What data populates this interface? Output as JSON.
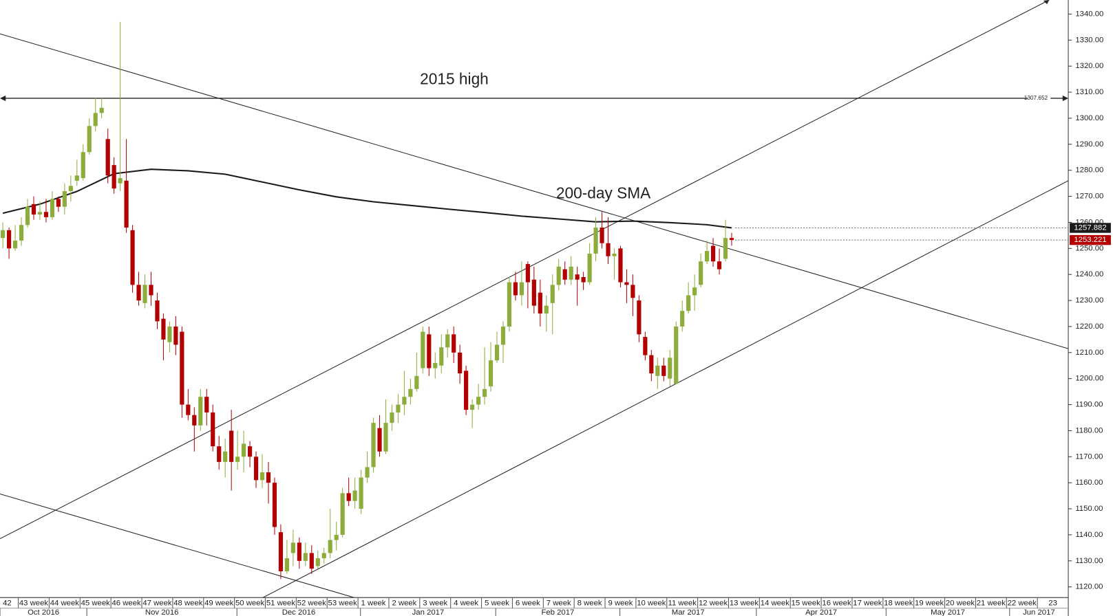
{
  "chart_data": {
    "type": "candlestick",
    "annotations": [
      {
        "text": "2015 high"
      },
      {
        "text": "200-day SMA"
      }
    ],
    "up_color": "#8cad3c",
    "down_color": "#b20000",
    "open": [
      1254,
      1257,
      1250,
      1253,
      1259,
      1267,
      1263,
      1264,
      1262,
      1269,
      1266,
      1272,
      1276,
      1277,
      1287,
      1297,
      1302,
      1292,
      1282,
      1275,
      1276,
      1257,
      1236,
      1229,
      1236,
      1230,
      1223,
      1214,
      1220,
      1218,
      1190,
      1186,
      1182,
      1193,
      1187,
      1174,
      1168,
      1180,
      1168,
      1170,
      1174,
      1170,
      1161,
      1164,
      1160,
      1141,
      1126,
      1133,
      1137,
      1130,
      1133,
      1128,
      1131,
      1133,
      1138,
      1140,
      1156,
      1153,
      1150,
      1162,
      1166,
      1181,
      1172,
      1183,
      1187,
      1190,
      1193,
      1196,
      1204,
      1217,
      1204,
      1205,
      1212,
      1217,
      1210,
      1203,
      1188,
      1190,
      1193,
      1197,
      1207,
      1213,
      1220,
      1237,
      1232,
      1244,
      1238,
      1233,
      1225,
      1229,
      1236,
      1242,
      1238,
      1240,
      1239,
      1237,
      1248,
      1258,
      1252,
      1247,
      1250,
      1237,
      1236,
      1230,
      1216,
      1209,
      1201,
      1205,
      1200,
      1198,
      1220,
      1226,
      1232,
      1236,
      1245,
      1251,
      1245,
      1246,
      1254
    ],
    "high": [
      1260,
      1258,
      1259,
      1262,
      1269,
      1270,
      1268,
      1269,
      1272,
      1270,
      1275,
      1278,
      1284,
      1290,
      1300,
      1308,
      1308,
      1296,
      1285,
      1337,
      1292,
      1259,
      1241,
      1240,
      1241,
      1233,
      1225,
      1222,
      1224,
      1220,
      1196,
      1189,
      1196,
      1196,
      1190,
      1178,
      1177,
      1188,
      1180,
      1180,
      1176,
      1172,
      1171,
      1168,
      1162,
      1144,
      1138,
      1142,
      1139,
      1137,
      1136,
      1134,
      1135,
      1150,
      1145,
      1158,
      1162,
      1162,
      1165,
      1172,
      1185,
      1186,
      1192,
      1190,
      1194,
      1203,
      1200,
      1210,
      1220,
      1220,
      1210,
      1217,
      1219,
      1220,
      1213,
      1205,
      1192,
      1198,
      1212,
      1214,
      1218,
      1222,
      1239,
      1241,
      1245,
      1245,
      1243,
      1238,
      1232,
      1240,
      1246,
      1245,
      1247,
      1243,
      1241,
      1252,
      1262,
      1264,
      1262,
      1250,
      1251,
      1242,
      1240,
      1232,
      1218,
      1211,
      1208,
      1208,
      1211,
      1222,
      1230,
      1237,
      1240,
      1248,
      1253,
      1254,
      1250,
      1261,
      1256
    ],
    "low": [
      1250,
      1246,
      1249,
      1251,
      1258,
      1261,
      1261,
      1260,
      1261,
      1264,
      1263,
      1268,
      1274,
      1276,
      1286,
      1295,
      1300,
      1275,
      1271,
      1272,
      1256,
      1233,
      1228,
      1227,
      1228,
      1219,
      1207,
      1210,
      1209,
      1185,
      1184,
      1172,
      1180,
      1182,
      1172,
      1165,
      1162,
      1157,
      1165,
      1164,
      1166,
      1158,
      1158,
      1152,
      1140,
      1123,
      1125,
      1128,
      1127,
      1128,
      1125,
      1127,
      1129,
      1131,
      1134,
      1139,
      1151,
      1150,
      1148,
      1160,
      1164,
      1170,
      1171,
      1180,
      1183,
      1186,
      1190,
      1195,
      1202,
      1201,
      1200,
      1202,
      1208,
      1206,
      1198,
      1186,
      1181,
      1188,
      1190,
      1195,
      1206,
      1206,
      1218,
      1230,
      1228,
      1227,
      1225,
      1220,
      1218,
      1217,
      1234,
      1236,
      1236,
      1228,
      1234,
      1236,
      1245,
      1250,
      1244,
      1238,
      1235,
      1229,
      1224,
      1214,
      1207,
      1199,
      1196,
      1199,
      1197,
      1198,
      1218,
      1225,
      1226,
      1235,
      1244,
      1243,
      1240,
      1245,
      1251
    ],
    "close": [
      1257,
      1250,
      1253,
      1259,
      1266,
      1263,
      1264,
      1262,
      1269,
      1266,
      1272,
      1274,
      1278,
      1287,
      1297,
      1302,
      1304,
      1278,
      1273,
      1277,
      1258,
      1236,
      1230,
      1236,
      1232,
      1222,
      1215,
      1220,
      1213,
      1190,
      1186,
      1182,
      1193,
      1187,
      1174,
      1168,
      1172,
      1168,
      1170,
      1175,
      1170,
      1161,
      1164,
      1160,
      1143,
      1126,
      1131,
      1137,
      1130,
      1133,
      1127,
      1131,
      1133,
      1138,
      1140,
      1156,
      1153,
      1157,
      1162,
      1166,
      1183,
      1172,
      1183,
      1187,
      1190,
      1193,
      1196,
      1201,
      1218,
      1204,
      1206,
      1212,
      1217,
      1210,
      1202,
      1188,
      1190,
      1193,
      1196,
      1207,
      1213,
      1220,
      1237,
      1232,
      1237,
      1237,
      1228,
      1225,
      1228,
      1236,
      1243,
      1238,
      1243,
      1238,
      1237,
      1248,
      1258,
      1252,
      1247,
      1248,
      1237,
      1236,
      1231,
      1217,
      1209,
      1202,
      1205,
      1201,
      1208,
      1220,
      1226,
      1232,
      1235,
      1245,
      1249,
      1245,
      1242,
      1254,
      1253.221
    ],
    "sma": {
      "color": "#1a1a1a",
      "x": [
        0,
        6,
        12,
        18,
        24,
        30,
        36,
        42,
        48,
        54,
        60,
        66,
        72,
        78,
        84,
        90,
        96,
        102,
        108,
        114,
        118
      ],
      "values": [
        1263.5,
        1267.0,
        1271.9,
        1278.7,
        1280.4,
        1279.8,
        1278.5,
        1275.5,
        1272.5,
        1269.8,
        1267.9,
        1266.5,
        1265.1,
        1263.8,
        1262.4,
        1261.3,
        1260.2,
        1260.5,
        1259.9,
        1259.1,
        1257.882
      ]
    },
    "lines": [
      {
        "x": [
          -0.46,
          172.5
        ],
        "values": [
          1332.4,
          1211.5
        ]
      },
      {
        "x": [
          -0.46,
          169.4
        ],
        "values": [
          1138.5,
          1345.4
        ]
      },
      {
        "x": [
          41.7,
          172.5
        ],
        "values": [
          1115.4,
          1276.0
        ]
      },
      {
        "x": [
          -0.46,
          57.6
        ],
        "values": [
          1155.7,
          1115.4
        ]
      }
    ],
    "hline": {
      "value": 1307.652
    },
    "xlim": [
      -0.46,
      172.5
    ],
    "ylim": [
      1115.9,
      1345.4
    ],
    "yticks": [
      {
        "value": 1120,
        "label": "1120.00"
      },
      {
        "value": 1130,
        "label": "1130.00"
      },
      {
        "value": 1140,
        "label": "1140.00"
      },
      {
        "value": 1150,
        "label": "1150.00"
      },
      {
        "value": 1160,
        "label": "1160.00"
      },
      {
        "value": 1170,
        "label": "1170.00"
      },
      {
        "value": 1180,
        "label": "1180.00"
      },
      {
        "value": 1190,
        "label": "1190.00"
      },
      {
        "value": 1200,
        "label": "1200.00"
      },
      {
        "value": 1210,
        "label": "1210.00"
      },
      {
        "value": 1220,
        "label": "1220.00"
      },
      {
        "value": 1230,
        "label": "1230.00"
      },
      {
        "value": 1240,
        "label": "1240.00"
      },
      {
        "value": 1250,
        "label": "1250.00"
      },
      {
        "value": 1260,
        "label": "1260.00"
      },
      {
        "value": 1270,
        "label": "1270.00"
      },
      {
        "value": 1280,
        "label": "1280.00"
      },
      {
        "value": 1290,
        "label": "1290.00"
      },
      {
        "value": 1300,
        "label": "1300.00"
      },
      {
        "value": 1310,
        "label": "1310.00"
      },
      {
        "value": 1320,
        "label": "1320.00"
      },
      {
        "value": 1330,
        "label": "1330.00"
      },
      {
        "value": 1340,
        "label": "1340.00"
      }
    ],
    "xticks": [
      {
        "value": -2.5,
        "label": "42"
      },
      {
        "value": 2.5,
        "label": "43 week"
      },
      {
        "value": 7.5,
        "label": "44 week"
      },
      {
        "value": 12.5,
        "label": "45 week"
      },
      {
        "value": 17.5,
        "label": "46 week"
      },
      {
        "value": 22.5,
        "label": "47 week"
      },
      {
        "value": 27.5,
        "label": "48 week"
      },
      {
        "value": 32.5,
        "label": "49 week"
      },
      {
        "value": 37.5,
        "label": "50 week"
      },
      {
        "value": 42.5,
        "label": "51 week"
      },
      {
        "value": 47.5,
        "label": "52 week"
      },
      {
        "value": 52.5,
        "label": "53 week"
      },
      {
        "value": 57.5,
        "label": "1 week"
      },
      {
        "value": 62.5,
        "label": "2 week"
      },
      {
        "value": 67.5,
        "label": "3 week"
      },
      {
        "value": 72.5,
        "label": "4 week"
      },
      {
        "value": 77.5,
        "label": "5 week"
      },
      {
        "value": 82.5,
        "label": "6 week"
      },
      {
        "value": 87.5,
        "label": "7 week"
      },
      {
        "value": 92.5,
        "label": "8 week"
      },
      {
        "value": 97.5,
        "label": "9 week"
      },
      {
        "value": 102.5,
        "label": "10 week"
      },
      {
        "value": 107.5,
        "label": "11 week"
      },
      {
        "value": 112.5,
        "label": "12 week"
      },
      {
        "value": 117.5,
        "label": "13 week"
      },
      {
        "value": 122.5,
        "label": "14 week"
      },
      {
        "value": 127.5,
        "label": "15 week"
      },
      {
        "value": 132.5,
        "label": "16 week"
      },
      {
        "value": 137.5,
        "label": "17 week"
      },
      {
        "value": 142.5,
        "label": "18 week"
      },
      {
        "value": 147.5,
        "label": "19 week"
      },
      {
        "value": 152.5,
        "label": "20 week"
      },
      {
        "value": 157.5,
        "label": "21 week"
      },
      {
        "value": 162.5,
        "label": "22 week"
      },
      {
        "value": 167.5,
        "label": "23"
      }
    ],
    "month_ticks": [
      {
        "value": -0.46,
        "label": "Oct 2016"
      },
      {
        "value": 13.6,
        "label": "Nov 2016"
      },
      {
        "value": 37.9,
        "label": "Dec 2016"
      },
      {
        "value": 57.9,
        "label": "Jan 2017"
      },
      {
        "value": 79.8,
        "label": "Feb 2017"
      },
      {
        "value": 99.9,
        "label": "Mar 2017"
      },
      {
        "value": 122,
        "label": "Apr 2017"
      },
      {
        "value": 143,
        "label": "May 2017"
      },
      {
        "value": 163,
        "label": "Jun 2017"
      }
    ]
  }
}
